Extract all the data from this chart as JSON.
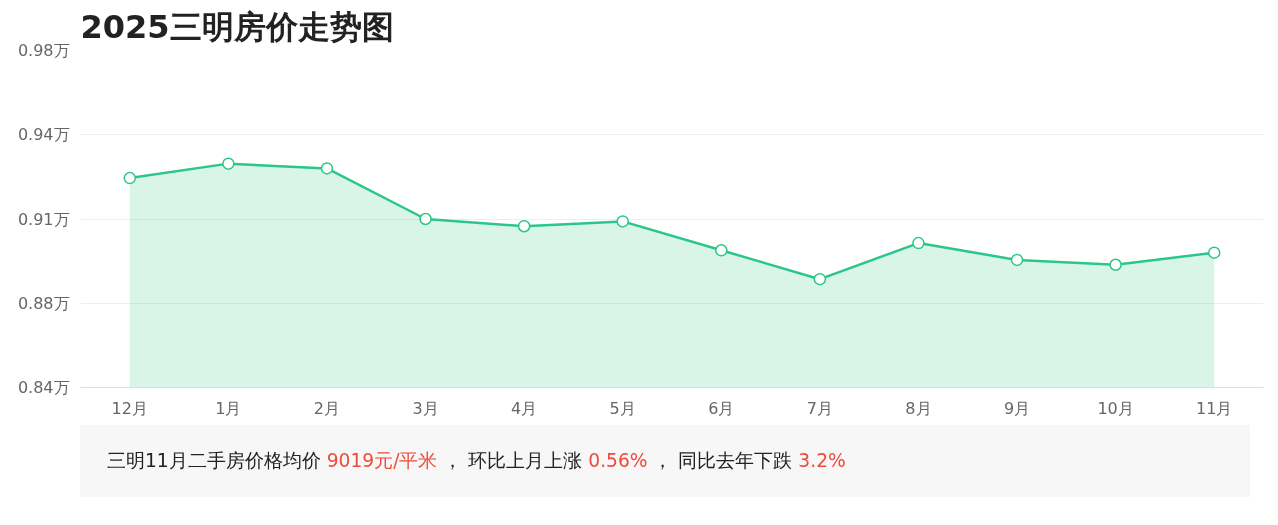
{
  "chart_data": {
    "type": "area",
    "title": "2025三明房价走势图",
    "categories": [
      "12月",
      "1月",
      "2月",
      "3月",
      "4月",
      "5月",
      "6月",
      "7月",
      "8月",
      "9月",
      "10月",
      "11月"
    ],
    "series": [
      {
        "color": "#2bc78a",
        "values": [
          0.927,
          0.933,
          0.931,
          0.91,
          0.907,
          0.909,
          0.897,
          0.885,
          0.9,
          0.893,
          0.891,
          0.896
        ]
      }
    ],
    "ylim": [
      0.84,
      0.98
    ],
    "yticks": [
      {
        "value": 0.84,
        "label": "0.84万"
      },
      {
        "value": 0.875,
        "label": "0.88万"
      },
      {
        "value": 0.91,
        "label": "0.91万"
      },
      {
        "value": 0.945,
        "label": "0.94万"
      },
      {
        "value": 0.98,
        "label": "0.98万"
      }
    ],
    "grid": "y",
    "marker": "circle",
    "line_style": "solid",
    "annotations": [
      "三明11月二手房价格均价",
      "9019元/平米",
      "， 环比上月上涨",
      "0.56%",
      "， 同比去年下跌",
      "3.2%"
    ]
  }
}
